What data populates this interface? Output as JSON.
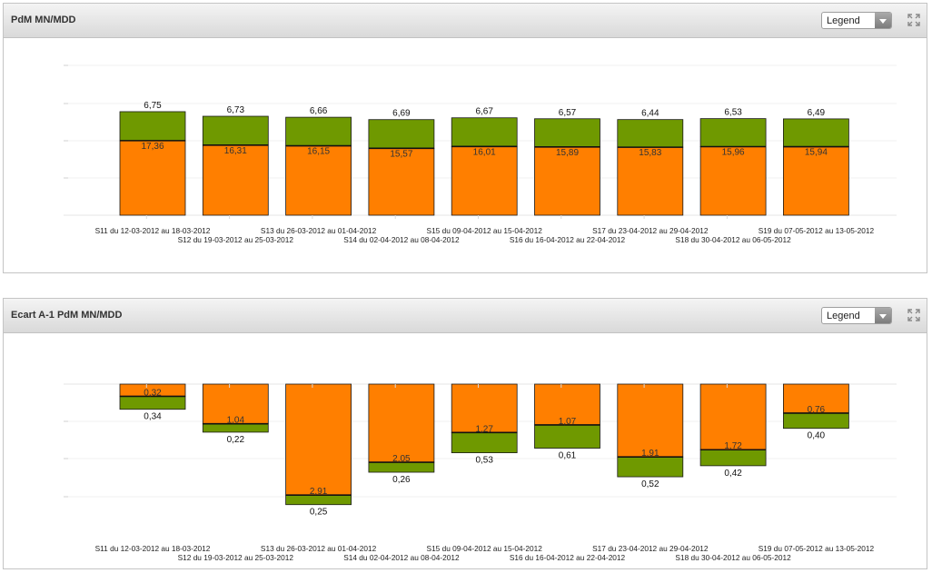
{
  "colors": {
    "orange": "#ff7f00",
    "green": "#6f9900",
    "border": "#1a1a1a"
  },
  "icons": {
    "expand": "expand-icon",
    "dropdown": "chevron-down-icon"
  },
  "panels": [
    {
      "title": "PdM MN/MDD",
      "legend_label": "Legend"
    },
    {
      "title": "Ecart A-1 PdM MN/MDD",
      "legend_label": "Legend"
    }
  ],
  "chart_data": [
    {
      "type": "bar",
      "stacked": true,
      "title": "PdM MN/MDD",
      "xlabel": "",
      "ylabel": "",
      "grid": true,
      "categories": [
        "S11 du 12-03-2012 au 18-03-2012",
        "S12 du 19-03-2012 au 25-03-2012",
        "S13 du 26-03-2012 au 01-04-2012",
        "S14 du 02-04-2012 au 08-04-2012",
        "S15 du 09-04-2012 au 15-04-2012",
        "S16 du 16-04-2012 au 22-04-2012",
        "S17 du 23-04-2012 au 29-04-2012",
        "S18 du 30-04-2012 au 06-05-2012",
        "S19 du 07-05-2012 au 13-05-2012"
      ],
      "series": [
        {
          "color": "#ff7f00",
          "values": [
            17.36,
            16.31,
            16.15,
            15.57,
            16.01,
            15.89,
            15.83,
            15.96,
            15.94
          ],
          "labels": [
            "17,36",
            "16,31",
            "16,15",
            "15,57",
            "16,01",
            "15,89",
            "15,83",
            "15,96",
            "15,94"
          ]
        },
        {
          "color": "#6f9900",
          "values": [
            6.75,
            6.73,
            6.66,
            6.69,
            6.67,
            6.57,
            6.44,
            6.53,
            6.49
          ],
          "labels": [
            "6,75",
            "6,73",
            "6,66",
            "6,69",
            "6,67",
            "6,57",
            "6,44",
            "6,53",
            "6,49"
          ]
        }
      ]
    },
    {
      "type": "bar",
      "stacked": true,
      "title": "Ecart A-1 PdM MN/MDD",
      "xlabel": "",
      "ylabel": "",
      "grid": true,
      "categories": [
        "S11 du 12-03-2012 au 18-03-2012",
        "S12 du 19-03-2012 au 25-03-2012",
        "S13 du 26-03-2012 au 01-04-2012",
        "S14 du 02-04-2012 au 08-04-2012",
        "S15 du 09-04-2012 au 15-04-2012",
        "S16 du 16-04-2012 au 22-04-2012",
        "S17 du 23-04-2012 au 29-04-2012",
        "S18 du 30-04-2012 au 06-05-2012",
        "S19 du 07-05-2012 au 13-05-2012"
      ],
      "series": [
        {
          "color": "#ff7f00",
          "values": [
            -0.32,
            -1.04,
            -2.91,
            -2.05,
            -1.27,
            -1.07,
            -1.91,
            -1.72,
            -0.76
          ],
          "labels": [
            "0,32",
            "1,04",
            "2,91",
            "2,05",
            "1,27",
            "1,07",
            "1,91",
            "1,72",
            "0,76"
          ]
        },
        {
          "color": "#6f9900",
          "values": [
            -0.34,
            -0.22,
            -0.25,
            -0.26,
            -0.53,
            -0.61,
            -0.52,
            -0.42,
            -0.4
          ],
          "labels": [
            "0,34",
            "0,22",
            "0,25",
            "0,26",
            "0,53",
            "0,61",
            "0,52",
            "0,42",
            "0,40"
          ]
        }
      ]
    }
  ]
}
